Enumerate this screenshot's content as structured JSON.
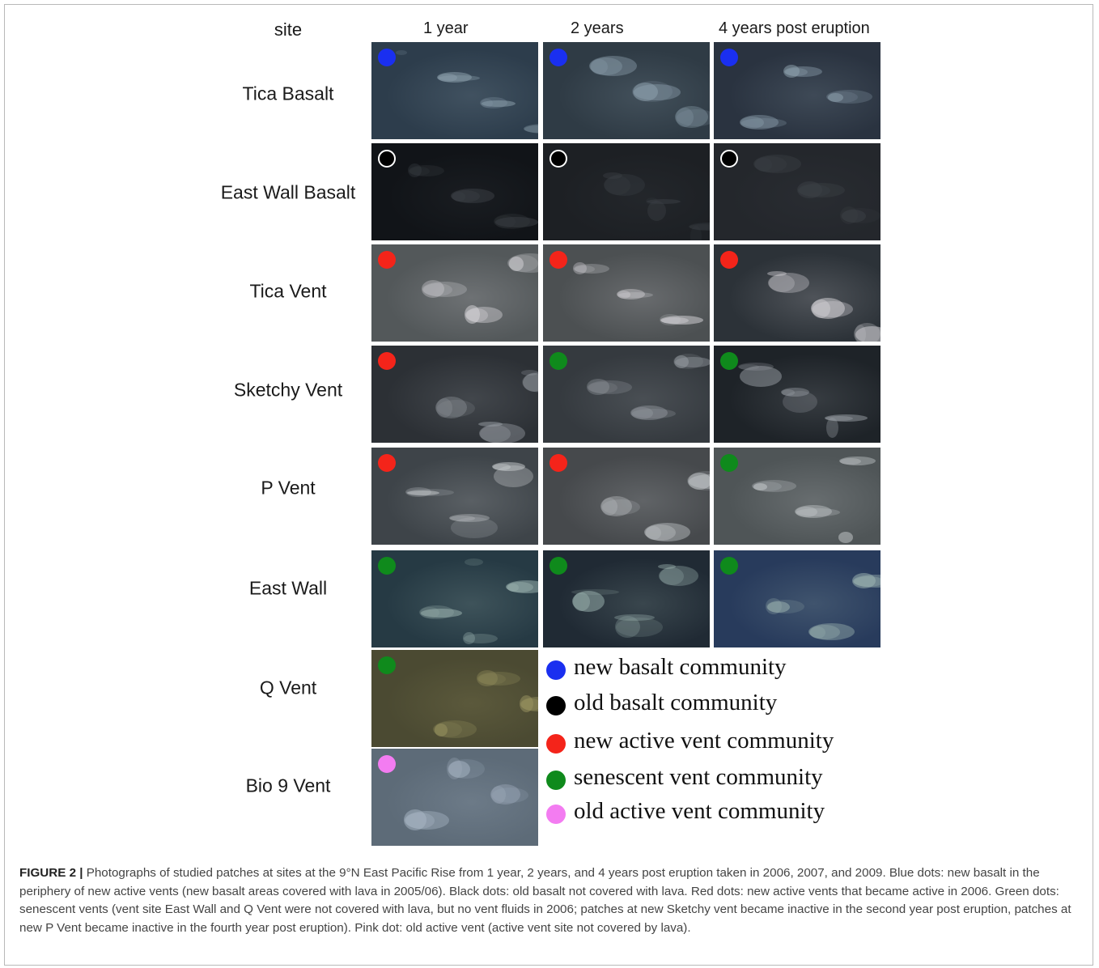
{
  "header": {
    "site_label": "site",
    "columns": [
      "1 year",
      "2 years",
      "4 years post eruption"
    ]
  },
  "colors": {
    "blue": "#1a2ff0",
    "black": "#000000",
    "red": "#f4241a",
    "green": "#0f8a1c",
    "pink": "#f37cf1"
  },
  "rows": [
    {
      "label": "Tica Basalt",
      "dots": [
        "blue",
        "blue",
        "blue"
      ]
    },
    {
      "label": "East Wall Basalt",
      "dots": [
        "black",
        "black",
        "black"
      ]
    },
    {
      "label": "Tica Vent",
      "dots": [
        "red",
        "red",
        "red"
      ]
    },
    {
      "label": "Sketchy Vent",
      "dots": [
        "red",
        "green",
        "green"
      ]
    },
    {
      "label": "P Vent",
      "dots": [
        "red",
        "red",
        "green"
      ]
    },
    {
      "label": "East Wall",
      "dots": [
        "green",
        "green",
        "green"
      ]
    },
    {
      "label": "Q Vent",
      "dots": [
        "green"
      ]
    },
    {
      "label": "Bio 9 Vent",
      "dots": [
        "pink"
      ]
    }
  ],
  "legend": [
    {
      "color": "blue",
      "label": "new basalt community"
    },
    {
      "color": "black",
      "label": "old basalt community"
    },
    {
      "color": "red",
      "label": "new active vent community"
    },
    {
      "color": "green",
      "label": "senescent vent community"
    },
    {
      "color": "pink",
      "label": "old active vent community"
    }
  ],
  "caption": {
    "lead": "FIGURE 2 |",
    "text": " Photographs of studied patches at sites at the 9°N East Pacific Rise from 1 year, 2 years, and 4 years post eruption taken in 2006, 2007, and 2009. Blue dots: new basalt in the periphery of new active vents (new basalt areas covered with lava in 2005/06). Black dots: old basalt not covered with lava. Red dots: new active vents that became active in 2006. Green dots: senescent vents (vent site East Wall and Q Vent were not covered with lava, but no vent fluids in 2006; patches at new Sketchy vent became inactive in the second year post eruption, patches at new P Vent became inactive in the fourth year post eruption). Pink dot: old active vent (active vent site not covered by lava)."
  }
}
